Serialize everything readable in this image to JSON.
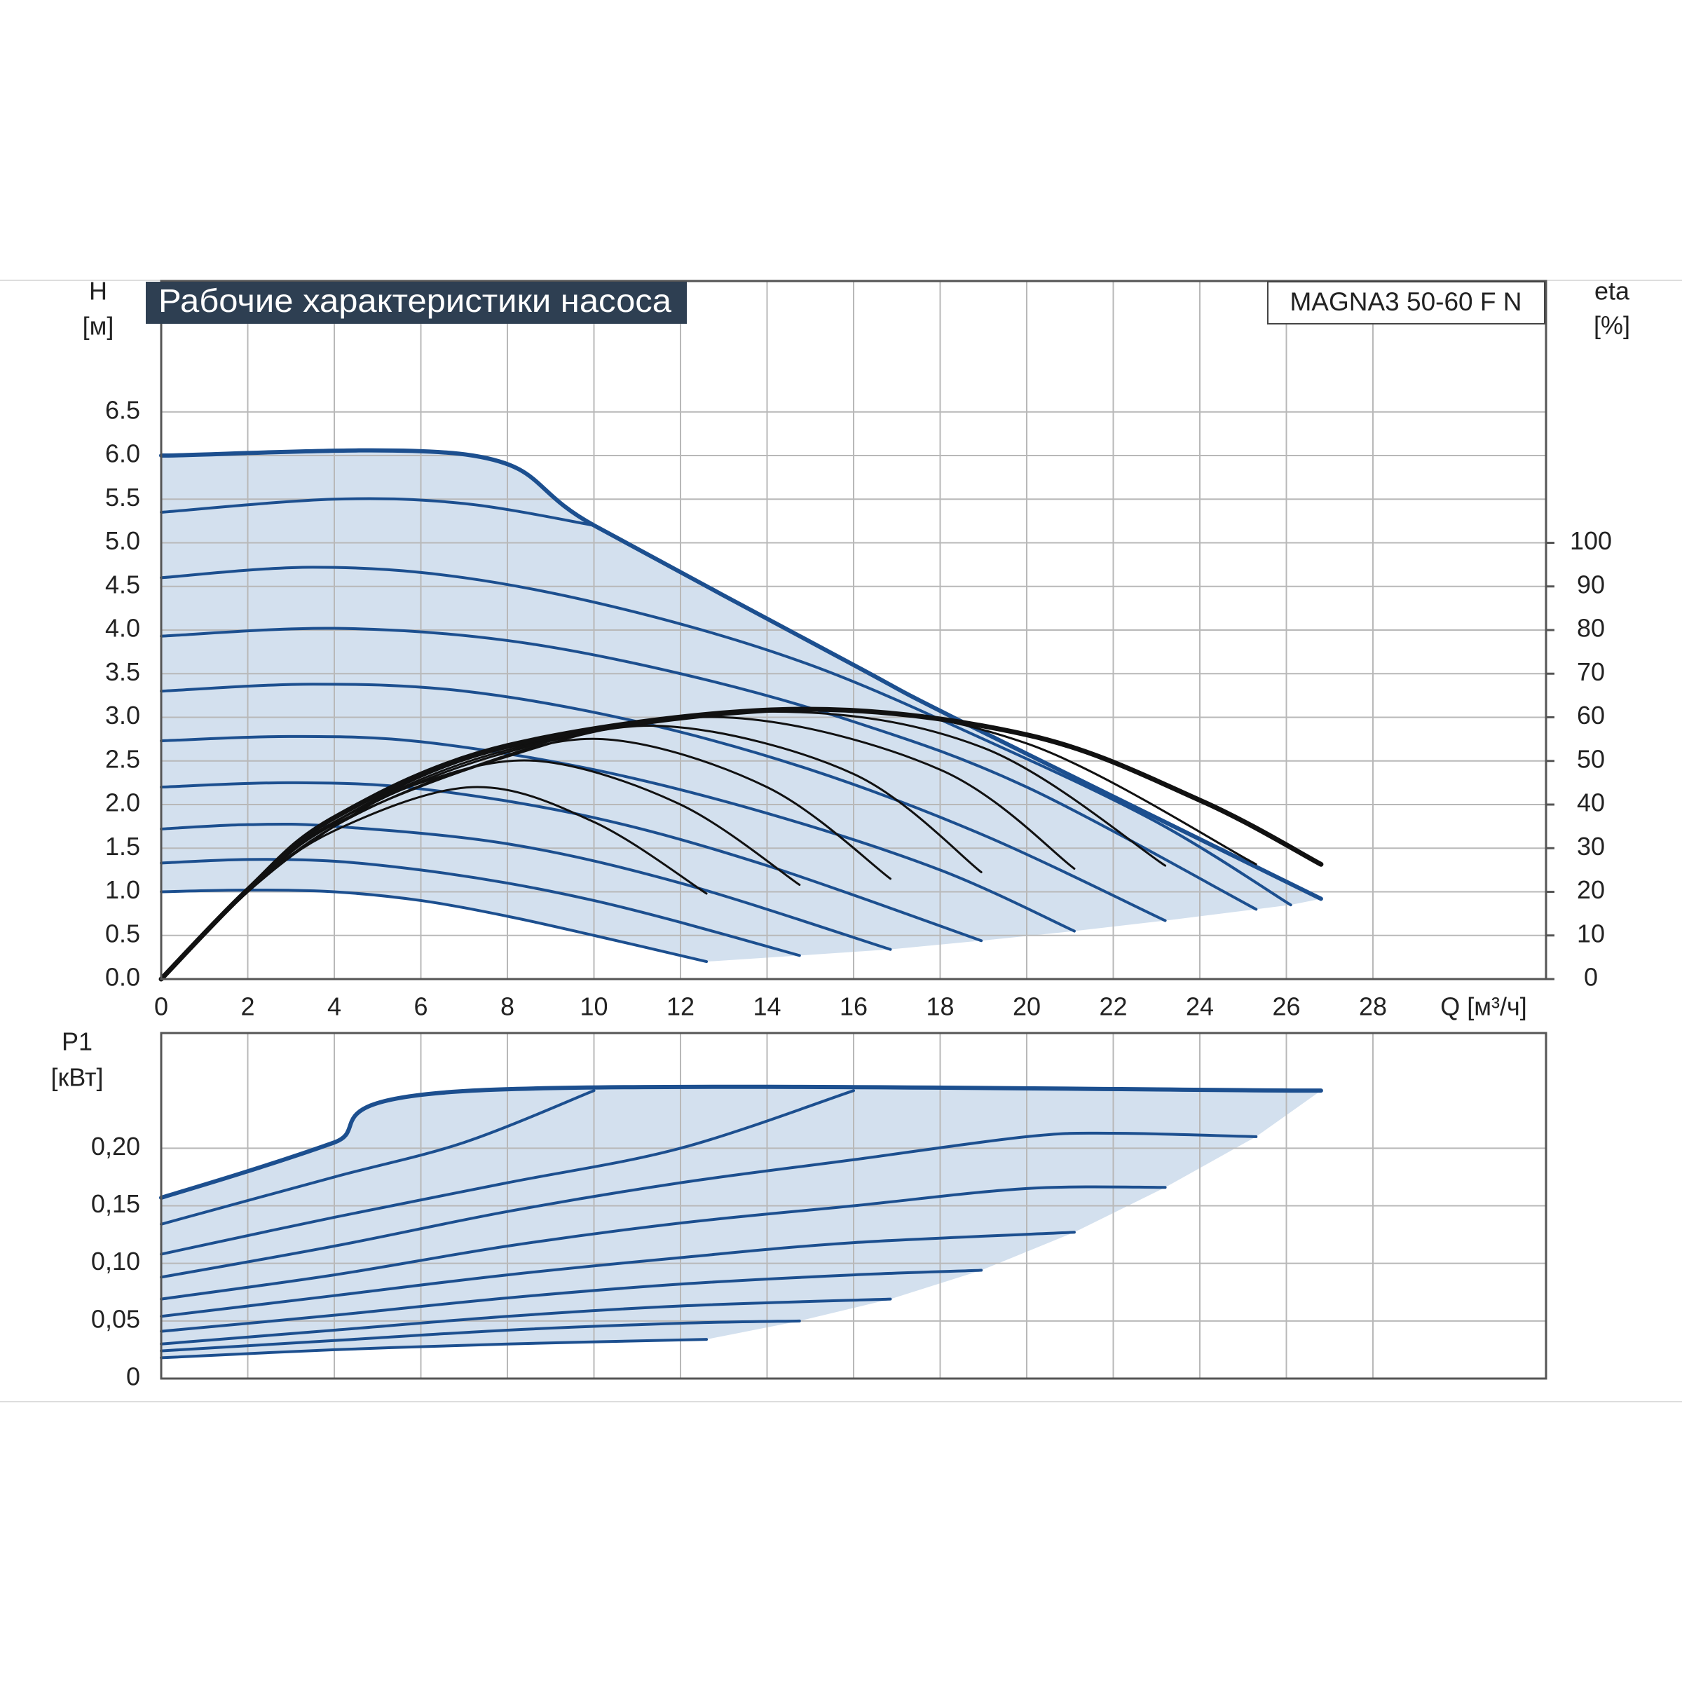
{
  "chart_data": [
    {
      "type": "line",
      "title": "Рабочие характеристики насоса",
      "subtitle": "MAGNA3 50-60 F N",
      "xlabel": "Q [м³/ч]",
      "ylabel": [
        "H",
        "[м]"
      ],
      "y2label": [
        "eta",
        "[%]"
      ],
      "xlim": [
        0,
        32
      ],
      "xticks": [
        0,
        2,
        4,
        6,
        8,
        10,
        12,
        14,
        16,
        18,
        20,
        22,
        24,
        26,
        28
      ],
      "ylim": [
        0,
        8
      ],
      "yticks": [
        {
          "value": 0,
          "label": "0.0"
        },
        0.5,
        {
          "value": 1,
          "label": "1.0"
        },
        1.5,
        {
          "value": 2,
          "label": "2.0"
        },
        2.5,
        {
          "value": 3,
          "label": "3.0"
        },
        3.5,
        {
          "value": 4,
          "label": "4.0"
        },
        4.5,
        {
          "value": 5,
          "label": "5.0"
        },
        5.5,
        {
          "value": 6,
          "label": "6.0"
        },
        6.5
      ],
      "y2lim": [
        0,
        160
      ],
      "y2ticks": [
        0,
        10,
        20,
        30,
        40,
        50,
        60,
        70,
        80,
        90,
        100
      ],
      "grid": true,
      "series": [
        {
          "color": "#1c4f8f",
          "x": [
            0,
            2,
            4,
            6,
            8,
            10,
            12.6
          ],
          "values": [
            1.0,
            1.02,
            1.0,
            0.9,
            0.72,
            0.5,
            0.2
          ]
        },
        {
          "color": "#1c4f8f",
          "x": [
            0,
            2,
            4,
            6,
            8,
            10,
            12,
            14.75
          ],
          "values": [
            1.33,
            1.37,
            1.35,
            1.25,
            1.1,
            0.9,
            0.65,
            0.27
          ]
        },
        {
          "color": "#1c4f8f",
          "x": [
            0,
            2,
            4,
            8,
            12,
            16.85
          ],
          "values": [
            1.72,
            1.77,
            1.75,
            1.55,
            1.1,
            0.34
          ]
        },
        {
          "color": "#1c4f8f",
          "x": [
            0,
            3,
            6,
            10,
            14,
            18.95
          ],
          "values": [
            2.2,
            2.25,
            2.18,
            1.85,
            1.3,
            0.44
          ]
        },
        {
          "color": "#1c4f8f",
          "x": [
            0,
            3,
            6,
            10,
            14,
            18,
            21.1
          ],
          "values": [
            2.73,
            2.78,
            2.72,
            2.4,
            1.9,
            1.25,
            0.55
          ]
        },
        {
          "color": "#1c4f8f",
          "x": [
            0,
            3.5,
            7,
            11,
            15,
            19,
            23.2
          ],
          "values": [
            3.3,
            3.38,
            3.3,
            2.95,
            2.4,
            1.65,
            0.67
          ]
        },
        {
          "color": "#1c4f8f",
          "x": [
            0,
            4,
            8,
            12,
            16,
            20,
            25.3
          ],
          "values": [
            3.93,
            4.02,
            3.88,
            3.5,
            2.95,
            2.2,
            0.8
          ]
        },
        {
          "color": "#1c4f8f",
          "x": [
            0,
            3.5,
            7,
            11,
            15,
            19,
            23,
            26.1
          ],
          "values": [
            4.6,
            4.72,
            4.6,
            4.2,
            3.6,
            2.75,
            1.8,
            0.85
          ]
        },
        {
          "color": "#1c4f8f",
          "x": [
            0,
            4,
            7,
            10
          ],
          "values": [
            5.35,
            5.5,
            5.45,
            5.2
          ]
        },
        {
          "color": "#1c4f8f",
          "x": [
            0,
            7.2,
            10,
            16,
            18.5,
            26.8
          ],
          "values": [
            6.0,
            6.0,
            5.2,
            3.6,
            2.95,
            0.92
          ]
        },
        {
          "color": "#111111",
          "axis": "y2",
          "x": [
            0,
            2,
            4,
            7.2,
            10,
            12.6
          ],
          "values": [
            0,
            20,
            34,
            44,
            36,
            19.6
          ]
        },
        {
          "color": "#111111",
          "axis": "y2",
          "x": [
            0,
            2,
            4,
            6,
            8.7,
            12,
            14.75
          ],
          "values": [
            0,
            20,
            35,
            45,
            50,
            40,
            21.6
          ]
        },
        {
          "color": "#111111",
          "axis": "y2",
          "x": [
            0,
            2,
            4,
            7,
            10.2,
            14,
            16.85
          ],
          "values": [
            0,
            20,
            35,
            48,
            55,
            44,
            23
          ]
        },
        {
          "color": "#111111",
          "axis": "y2",
          "x": [
            0,
            2,
            4,
            8,
            11.6,
            16,
            18.95
          ],
          "values": [
            0,
            20,
            35.5,
            51,
            58,
            47,
            24.5
          ]
        },
        {
          "color": "#111111",
          "axis": "y2",
          "x": [
            0,
            2,
            4,
            8,
            13,
            18,
            21.1
          ],
          "values": [
            0,
            20,
            36,
            52,
            60,
            48,
            25.3
          ]
        },
        {
          "color": "#111111",
          "axis": "y2",
          "x": [
            0,
            2,
            4,
            8,
            14,
            19,
            23.2
          ],
          "values": [
            0,
            20,
            36,
            52.5,
            61.3,
            53,
            26
          ]
        },
        {
          "color": "#111111",
          "axis": "y2",
          "x": [
            0,
            2,
            4,
            8,
            15,
            20,
            25.3
          ],
          "values": [
            0,
            20,
            36,
            53,
            61.6,
            54,
            26.3
          ]
        },
        {
          "color": "#111111",
          "axis": "y2",
          "x": [
            0,
            2,
            4,
            8,
            14.5,
            20,
            24,
            26.8
          ],
          "values": [
            0,
            20.5,
            37,
            53.5,
            61.8,
            56,
            41,
            26.3
          ]
        }
      ]
    },
    {
      "type": "line",
      "ylabel": [
        "P1",
        "[кВт]"
      ],
      "ylim": [
        0,
        0.3
      ],
      "yticks": [
        0,
        {
          "value": 0.05,
          "label": "0,05"
        },
        {
          "value": 0.1,
          "label": "0,10"
        },
        {
          "value": 0.15,
          "label": "0,15"
        },
        {
          "value": 0.2,
          "label": "0,20"
        }
      ],
      "grid": true,
      "series": [
        {
          "color": "#1c4f8f",
          "x": [
            0,
            4,
            8,
            12.6
          ],
          "values": [
            0.018,
            0.025,
            0.03,
            0.034
          ]
        },
        {
          "color": "#1c4f8f",
          "x": [
            0,
            4,
            8,
            12,
            14.75
          ],
          "values": [
            0.024,
            0.033,
            0.042,
            0.048,
            0.05
          ]
        },
        {
          "color": "#1c4f8f",
          "x": [
            0,
            4,
            8,
            12,
            16.85
          ],
          "values": [
            0.03,
            0.042,
            0.054,
            0.063,
            0.069
          ]
        },
        {
          "color": "#1c4f8f",
          "x": [
            0,
            4,
            8,
            12,
            16,
            18.95
          ],
          "values": [
            0.041,
            0.055,
            0.07,
            0.082,
            0.09,
            0.094
          ]
        },
        {
          "color": "#1c4f8f",
          "x": [
            0,
            4,
            8,
            12,
            16,
            21.1
          ],
          "values": [
            0.054,
            0.072,
            0.09,
            0.105,
            0.118,
            0.127
          ]
        },
        {
          "color": "#1c4f8f",
          "x": [
            0,
            4,
            8,
            12,
            16,
            20,
            23.2
          ],
          "values": [
            0.069,
            0.09,
            0.115,
            0.135,
            0.15,
            0.165,
            0.166
          ]
        },
        {
          "color": "#1c4f8f",
          "x": [
            0,
            4,
            8,
            12,
            16,
            20,
            22,
            25.3
          ],
          "values": [
            0.088,
            0.115,
            0.145,
            0.17,
            0.19,
            0.21,
            0.213,
            0.21
          ]
        },
        {
          "color": "#1c4f8f",
          "x": [
            0,
            4,
            8,
            12,
            16
          ],
          "values": [
            0.108,
            0.14,
            0.17,
            0.2,
            0.25
          ]
        },
        {
          "color": "#1c4f8f",
          "x": [
            0,
            4,
            7,
            10
          ],
          "values": [
            0.134,
            0.175,
            0.205,
            0.25
          ]
        },
        {
          "color": "#1c4f8f",
          "x": [
            0,
            2,
            4,
            7.2,
            26.8
          ],
          "values": [
            0.157,
            0.18,
            0.205,
            0.25,
            0.25
          ]
        }
      ]
    }
  ]
}
